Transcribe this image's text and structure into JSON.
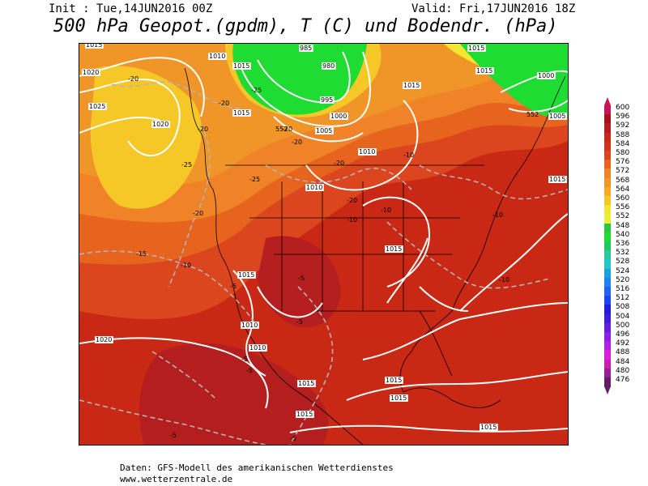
{
  "header": {
    "init": "Init : Tue,14JUN2016 00Z",
    "valid": "Valid: Fri,17JUN2016 18Z",
    "title": "500 hPa Geopot.(gpdm), T (C) und Bodendr. (hPa)"
  },
  "footer": {
    "source": "Daten: GFS-Modell des amerikanischen Wetterdienstes",
    "url": "www.wetterzentrale.de"
  },
  "legend": {
    "values": [
      "600",
      "596",
      "592",
      "588",
      "584",
      "580",
      "576",
      "572",
      "568",
      "564",
      "560",
      "556",
      "552",
      "548",
      "540",
      "536",
      "532",
      "528",
      "524",
      "520",
      "516",
      "512",
      "508",
      "504",
      "500",
      "496",
      "492",
      "488",
      "484",
      "480",
      "476"
    ],
    "colors": [
      "#c8145a",
      "#a0141e",
      "#b41e1e",
      "#c82814",
      "#d2321e",
      "#dc461e",
      "#e6641e",
      "#f08228",
      "#f09628",
      "#f5aa28",
      "#f5c828",
      "#f5e632",
      "#e6f03c",
      "#28c83c",
      "#1edc32",
      "#1ec85a",
      "#28c8a0",
      "#1ec8c8",
      "#1ea0dc",
      "#1e82f0",
      "#1e64f0",
      "#1e46f0",
      "#1e1edc",
      "#3c1edc",
      "#641edc",
      "#8c1ee6",
      "#b41edc",
      "#dc1edc",
      "#c81eb4",
      "#961e96",
      "#641e64"
    ]
  },
  "map_labels": {
    "pressure": [
      "1015",
      "1020",
      "1025",
      "1020",
      "1010",
      "1015",
      "1015",
      "985",
      "980",
      "995",
      "1000",
      "1005",
      "1015",
      "1015",
      "1000",
      "1005",
      "1010",
      "1010",
      "1015",
      "1015",
      "1015",
      "1010",
      "1010",
      "1015",
      "1015",
      "1015",
      "1015",
      "1015",
      "1015",
      "1015",
      "1020"
    ],
    "temperature": [
      "-20",
      "-20",
      "-25",
      "-20",
      "-25",
      "-20",
      "-20",
      "-20",
      "-25",
      "-20",
      "-20",
      "-15",
      "-10",
      "-10",
      "-10",
      "-10",
      "-10",
      "-5",
      "-5",
      "-5",
      "-5",
      "-10",
      "-5",
      "-5",
      "-5"
    ],
    "geopotential": [
      "552",
      "552"
    ]
  }
}
